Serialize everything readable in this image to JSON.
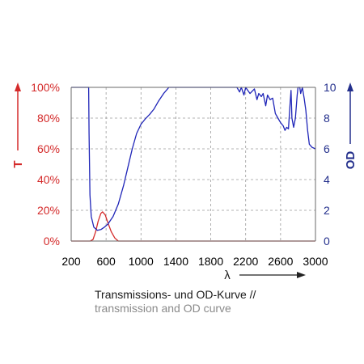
{
  "chart_data": {
    "type": "line",
    "xlabel": "λ",
    "x_ticks": [
      "200",
      "600",
      "1000",
      "1400",
      "1800",
      "2200",
      "2600",
      "3000"
    ],
    "xlim": [
      200,
      3000
    ],
    "left_axis": {
      "label": "T",
      "color": "#d42a2a",
      "ticks": [
        "0%",
        "20%",
        "40%",
        "60%",
        "80%",
        "100%"
      ],
      "range": [
        0,
        100
      ]
    },
    "right_axis": {
      "label": "OD",
      "color": "#232f8c",
      "ticks": [
        "0",
        "2",
        "4",
        "6",
        "8",
        "10"
      ],
      "range": [
        0,
        10
      ]
    },
    "grid": true,
    "series": [
      {
        "axis": "left",
        "color": "#d42a2a",
        "points": [
          [
            200,
            0
          ],
          [
            420,
            0
          ],
          [
            450,
            1
          ],
          [
            480,
            6
          ],
          [
            510,
            13
          ],
          [
            540,
            18
          ],
          [
            560,
            19
          ],
          [
            590,
            17
          ],
          [
            620,
            12
          ],
          [
            660,
            6
          ],
          [
            700,
            2
          ],
          [
            740,
            0
          ],
          [
            3000,
            0
          ]
        ]
      },
      {
        "axis": "right",
        "color": "#1f25b8",
        "points": [
          [
            200,
            10
          ],
          [
            400,
            10
          ],
          [
            405,
            7
          ],
          [
            415,
            3
          ],
          [
            430,
            1.6
          ],
          [
            460,
            0.9
          ],
          [
            500,
            0.7
          ],
          [
            540,
            0.75
          ],
          [
            580,
            0.9
          ],
          [
            620,
            1.1
          ],
          [
            680,
            1.6
          ],
          [
            740,
            2.4
          ],
          [
            800,
            3.6
          ],
          [
            850,
            4.8
          ],
          [
            900,
            6
          ],
          [
            950,
            7
          ],
          [
            1000,
            7.6
          ],
          [
            1050,
            7.95
          ],
          [
            1100,
            8.25
          ],
          [
            1150,
            8.6
          ],
          [
            1200,
            9.1
          ],
          [
            1260,
            9.6
          ],
          [
            1320,
            10
          ],
          [
            2100,
            10
          ],
          [
            2130,
            9.7
          ],
          [
            2150,
            10
          ],
          [
            2180,
            9.5
          ],
          [
            2200,
            10
          ],
          [
            2250,
            9.6
          ],
          [
            2300,
            9.9
          ],
          [
            2330,
            9.2
          ],
          [
            2350,
            9.6
          ],
          [
            2380,
            9.4
          ],
          [
            2400,
            9.6
          ],
          [
            2430,
            8.8
          ],
          [
            2450,
            9.5
          ],
          [
            2480,
            9.2
          ],
          [
            2510,
            9.3
          ],
          [
            2540,
            8.3
          ],
          [
            2570,
            8.0
          ],
          [
            2600,
            7.7
          ],
          [
            2630,
            7.5
          ],
          [
            2650,
            7.2
          ],
          [
            2670,
            7.4
          ],
          [
            2690,
            7.3
          ],
          [
            2710,
            9.0
          ],
          [
            2720,
            9.8
          ],
          [
            2730,
            8.0
          ],
          [
            2750,
            7.4
          ],
          [
            2770,
            8.0
          ],
          [
            2790,
            9.5
          ],
          [
            2800,
            10
          ],
          [
            2820,
            10
          ],
          [
            2830,
            9.6
          ],
          [
            2850,
            10
          ],
          [
            2870,
            9.3
          ],
          [
            2890,
            8.5
          ],
          [
            2910,
            7.2
          ],
          [
            2930,
            6.3
          ],
          [
            2960,
            6.1
          ],
          [
            3000,
            6.0
          ]
        ]
      }
    ]
  },
  "caption": {
    "line1": "Transmissions- und OD-Kurve //",
    "line2": "transmission and OD curve"
  }
}
